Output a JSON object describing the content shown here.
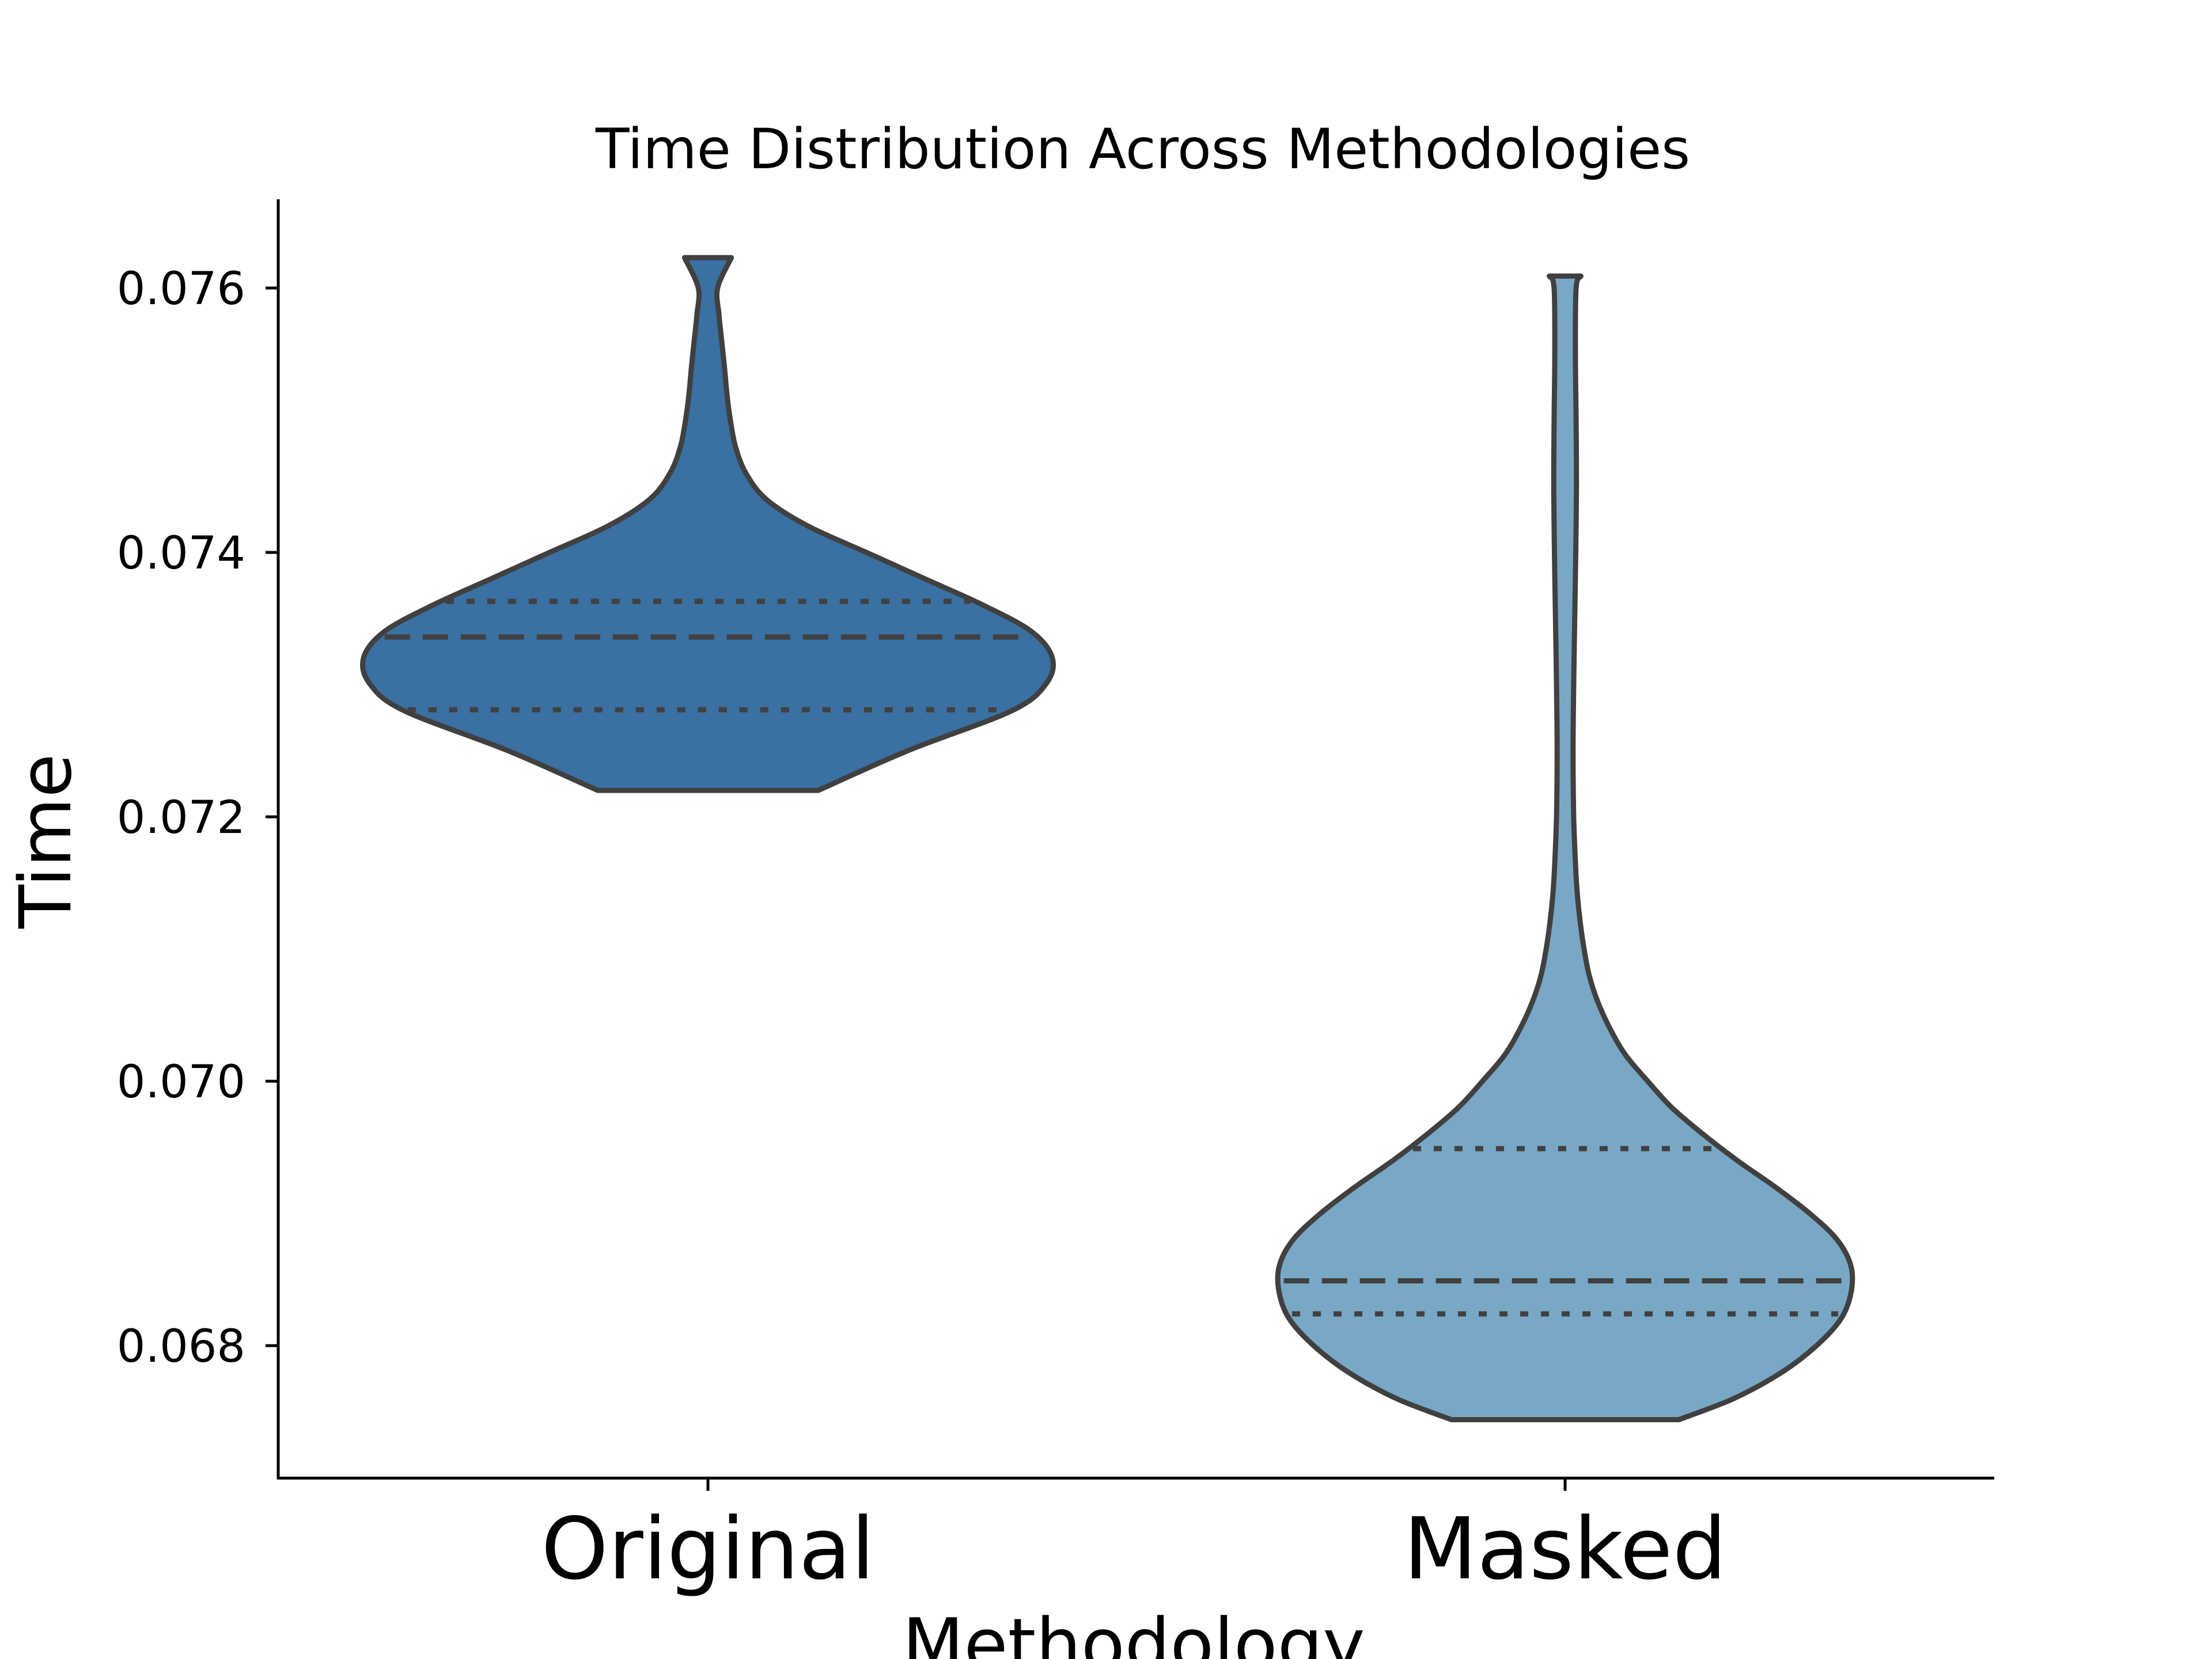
{
  "chart_data": {
    "type": "violin",
    "title": "Time Distribution Across Methodologies",
    "xlabel": "Methodology",
    "ylabel": "Time",
    "ylim": [
      0.067,
      0.0767
    ],
    "yticks": [
      0.068,
      0.07,
      0.072,
      0.074,
      0.076
    ],
    "ytick_labels": [
      "0.068",
      "0.070",
      "0.072",
      "0.074",
      "0.076"
    ],
    "grid": false,
    "categories": [
      "Original",
      "Masked"
    ],
    "violins": [
      {
        "category": "Original",
        "color": "#3a70a2",
        "min": 0.0722,
        "q1": 0.07281,
        "median": 0.07336,
        "q3": 0.07363,
        "max": 0.07623,
        "profile": [
          [
            0.0722,
            0.32
          ],
          [
            0.0725,
            0.58
          ],
          [
            0.0728,
            0.88
          ],
          [
            0.073,
            0.98
          ],
          [
            0.0732,
            1.0
          ],
          [
            0.0734,
            0.94
          ],
          [
            0.0736,
            0.8
          ],
          [
            0.0738,
            0.63
          ],
          [
            0.074,
            0.46
          ],
          [
            0.0742,
            0.29
          ],
          [
            0.0744,
            0.17
          ],
          [
            0.0746,
            0.11
          ],
          [
            0.0748,
            0.08
          ],
          [
            0.075,
            0.065
          ],
          [
            0.0752,
            0.055
          ],
          [
            0.0754,
            0.048
          ],
          [
            0.0756,
            0.04
          ],
          [
            0.0758,
            0.032
          ],
          [
            0.076,
            0.028
          ],
          [
            0.07623,
            0.068
          ]
        ]
      },
      {
        "category": "Masked",
        "color": "#78a8c6",
        "min": 0.06744,
        "q1": 0.06824,
        "median": 0.06849,
        "q3": 0.06949,
        "max": 0.07609,
        "profile": [
          [
            0.06744,
            0.33
          ],
          [
            0.0676,
            0.49
          ],
          [
            0.0678,
            0.63
          ],
          [
            0.068,
            0.73
          ],
          [
            0.0682,
            0.8
          ],
          [
            0.0684,
            0.83
          ],
          [
            0.0686,
            0.83
          ],
          [
            0.0688,
            0.79
          ],
          [
            0.069,
            0.71
          ],
          [
            0.0692,
            0.61
          ],
          [
            0.0694,
            0.5
          ],
          [
            0.0696,
            0.4
          ],
          [
            0.0698,
            0.31
          ],
          [
            0.07,
            0.24
          ],
          [
            0.0702,
            0.175
          ],
          [
            0.0704,
            0.13
          ],
          [
            0.0706,
            0.095
          ],
          [
            0.0708,
            0.07
          ],
          [
            0.071,
            0.055
          ],
          [
            0.0712,
            0.044
          ],
          [
            0.0714,
            0.036
          ],
          [
            0.0716,
            0.031
          ],
          [
            0.072,
            0.025
          ],
          [
            0.0725,
            0.023
          ],
          [
            0.073,
            0.025
          ],
          [
            0.0735,
            0.028
          ],
          [
            0.074,
            0.031
          ],
          [
            0.0745,
            0.033
          ],
          [
            0.075,
            0.032
          ],
          [
            0.0755,
            0.03
          ],
          [
            0.076,
            0.032
          ],
          [
            0.07609,
            0.046
          ]
        ]
      }
    ]
  }
}
